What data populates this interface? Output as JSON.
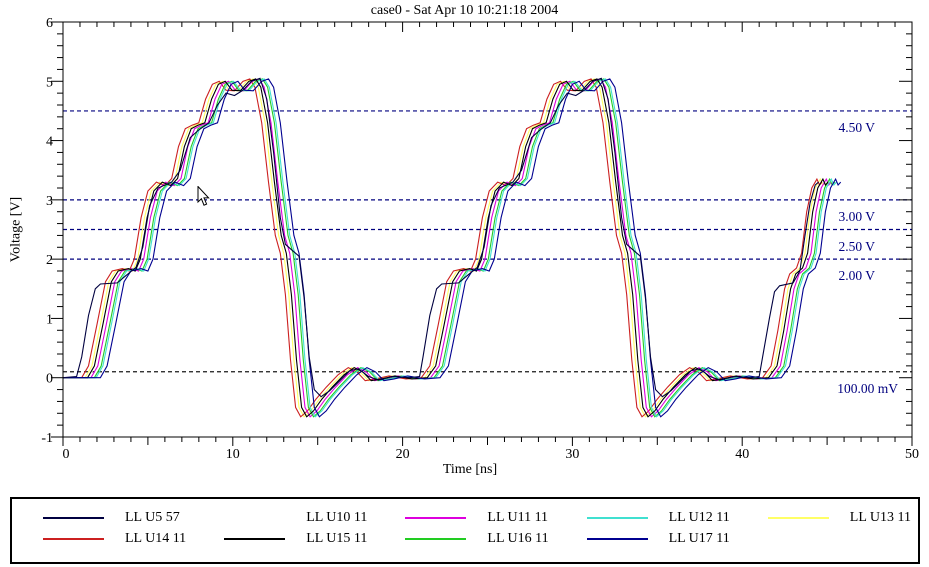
{
  "window": {
    "background": "#ffffff"
  },
  "chart_data": {
    "type": "line",
    "title": "case0 - Sat Apr 10 10:21:18 2004",
    "xlabel": "Time [ns]",
    "ylabel": "Voltage [V]",
    "xlim": [
      0,
      50
    ],
    "ylim": [
      -1,
      6
    ],
    "x_ticks": [
      0,
      10,
      20,
      30,
      40,
      50
    ],
    "y_ticks": [
      -1,
      0,
      1,
      2,
      3,
      4,
      5,
      6
    ],
    "x_minor_step_ns": 1,
    "y_minor_step_v": 0.2,
    "grid": false,
    "legend_position": "bottom",
    "frame_color": "#000000",
    "thresholds": [
      {
        "label": "4.50 V",
        "value": 4.5,
        "color": "#00007f"
      },
      {
        "label": "3.00 V",
        "value": 3.0,
        "color": "#00007f"
      },
      {
        "label": "2.50 V",
        "value": 2.5,
        "color": "#00007f"
      },
      {
        "label": "2.00 V",
        "value": 2.0,
        "color": "#00007f"
      },
      {
        "label": "100.00 mV",
        "value": 0.1,
        "color": "#1a1a1a"
      }
    ],
    "waveforms": {
      "base": [
        [
          0,
          0
        ],
        [
          0.9,
          0
        ],
        [
          1.3,
          0.2
        ],
        [
          1.8,
          0.9
        ],
        [
          2.3,
          1.62
        ],
        [
          2.7,
          1.8
        ],
        [
          3.3,
          1.84
        ],
        [
          3.7,
          1.8
        ],
        [
          4.0,
          2.0
        ],
        [
          4.4,
          2.7
        ],
        [
          4.8,
          3.15
        ],
        [
          5.3,
          3.3
        ],
        [
          5.8,
          3.24
        ],
        [
          6.2,
          3.36
        ],
        [
          6.6,
          3.9
        ],
        [
          7.0,
          4.2
        ],
        [
          7.4,
          4.26
        ],
        [
          7.8,
          4.3
        ],
        [
          8.2,
          4.7
        ],
        [
          8.6,
          4.95
        ],
        [
          9.0,
          5.0
        ],
        [
          9.4,
          4.85
        ],
        [
          9.9,
          4.84
        ],
        [
          10.4,
          5.0
        ],
        [
          10.8,
          5.04
        ],
        [
          11.1,
          4.9
        ],
        [
          11.5,
          4.3
        ],
        [
          11.9,
          3.3
        ],
        [
          12.3,
          2.4
        ],
        [
          12.6,
          2.1
        ],
        [
          12.9,
          1.4
        ],
        [
          13.2,
          0.3
        ],
        [
          13.5,
          -0.5
        ],
        [
          13.8,
          -0.66
        ],
        [
          14.2,
          -0.56
        ],
        [
          14.7,
          -0.36
        ],
        [
          15.3,
          -0.16
        ],
        [
          16.0,
          0.05
        ],
        [
          16.6,
          0.17
        ],
        [
          17.1,
          0.1
        ],
        [
          17.6,
          -0.05
        ],
        [
          18.2,
          -0.02
        ],
        [
          19.0,
          0.03
        ],
        [
          20.0,
          -0.02
        ],
        [
          20.9,
          0
        ],
        [
          21.4,
          0.2
        ],
        [
          21.9,
          0.9
        ],
        [
          22.4,
          1.62
        ],
        [
          22.8,
          1.8
        ],
        [
          23.4,
          1.84
        ],
        [
          23.8,
          1.8
        ],
        [
          24.1,
          2.0
        ],
        [
          24.5,
          2.7
        ],
        [
          24.9,
          3.15
        ],
        [
          25.4,
          3.3
        ],
        [
          25.9,
          3.24
        ],
        [
          26.3,
          3.36
        ],
        [
          26.7,
          3.9
        ],
        [
          27.1,
          4.2
        ],
        [
          27.5,
          4.26
        ],
        [
          27.9,
          4.3
        ],
        [
          28.3,
          4.7
        ],
        [
          28.7,
          4.95
        ],
        [
          29.1,
          5.0
        ],
        [
          29.5,
          4.85
        ],
        [
          30.0,
          4.84
        ],
        [
          30.5,
          5.0
        ],
        [
          30.9,
          5.04
        ],
        [
          31.2,
          4.9
        ],
        [
          31.6,
          4.3
        ],
        [
          32.0,
          3.3
        ],
        [
          32.4,
          2.4
        ],
        [
          32.7,
          2.1
        ],
        [
          33.0,
          1.4
        ],
        [
          33.3,
          0.3
        ],
        [
          33.6,
          -0.5
        ],
        [
          33.9,
          -0.66
        ],
        [
          34.3,
          -0.56
        ],
        [
          34.8,
          -0.36
        ],
        [
          35.4,
          -0.16
        ],
        [
          36.1,
          0.05
        ],
        [
          36.7,
          0.17
        ],
        [
          37.2,
          0.1
        ],
        [
          37.7,
          -0.05
        ],
        [
          38.3,
          -0.02
        ],
        [
          39.1,
          0.03
        ],
        [
          40.1,
          -0.02
        ],
        [
          41.0,
          0
        ],
        [
          41.5,
          0.2
        ],
        [
          41.9,
          0.8
        ],
        [
          42.3,
          1.5
        ],
        [
          42.6,
          1.75
        ],
        [
          43.0,
          1.85
        ],
        [
          43.3,
          2.1
        ],
        [
          43.6,
          2.8
        ],
        [
          43.9,
          3.2
        ],
        [
          44.2,
          3.35
        ],
        [
          44.35,
          3.25
        ],
        [
          44.5,
          3.3
        ]
      ],
      "u5": [
        [
          0,
          0
        ],
        [
          0.8,
          0.02
        ],
        [
          1.1,
          0.35
        ],
        [
          1.5,
          1.05
        ],
        [
          1.9,
          1.5
        ],
        [
          2.2,
          1.58
        ],
        [
          3.2,
          1.6
        ],
        [
          3.7,
          1.72
        ],
        [
          4.3,
          1.86
        ],
        [
          4.7,
          2.2
        ],
        [
          5.1,
          2.9
        ],
        [
          5.6,
          3.2
        ],
        [
          6.4,
          3.3
        ],
        [
          6.9,
          3.5
        ],
        [
          7.5,
          4.05
        ],
        [
          8.0,
          4.18
        ],
        [
          8.6,
          4.3
        ],
        [
          9.1,
          4.6
        ],
        [
          9.6,
          4.8
        ],
        [
          10.1,
          4.76
        ],
        [
          10.6,
          4.85
        ],
        [
          11.1,
          5.0
        ],
        [
          11.6,
          5.05
        ],
        [
          12.0,
          4.7
        ],
        [
          12.4,
          3.8
        ],
        [
          12.8,
          2.7
        ],
        [
          13.1,
          2.25
        ],
        [
          13.5,
          2.15
        ],
        [
          13.9,
          2.05
        ],
        [
          14.2,
          1.35
        ],
        [
          14.5,
          0.35
        ],
        [
          14.8,
          -0.2
        ],
        [
          15.2,
          -0.32
        ],
        [
          15.7,
          -0.22
        ],
        [
          16.3,
          -0.05
        ],
        [
          16.9,
          0.12
        ],
        [
          17.4,
          0.15
        ],
        [
          18.0,
          0.02
        ],
        [
          18.6,
          -0.04
        ],
        [
          19.4,
          0.02
        ],
        [
          20.4,
          0
        ],
        [
          21.0,
          0.02
        ],
        [
          21.2,
          0.35
        ],
        [
          21.6,
          1.05
        ],
        [
          22.0,
          1.5
        ],
        [
          22.3,
          1.58
        ],
        [
          23.3,
          1.6
        ],
        [
          23.8,
          1.72
        ],
        [
          24.4,
          1.86
        ],
        [
          24.8,
          2.2
        ],
        [
          25.2,
          2.9
        ],
        [
          25.7,
          3.2
        ],
        [
          26.5,
          3.3
        ],
        [
          27.0,
          3.5
        ],
        [
          27.6,
          4.05
        ],
        [
          28.1,
          4.18
        ],
        [
          28.7,
          4.3
        ],
        [
          29.2,
          4.6
        ],
        [
          29.7,
          4.8
        ],
        [
          30.2,
          4.76
        ],
        [
          30.7,
          4.85
        ],
        [
          31.2,
          5.0
        ],
        [
          31.7,
          5.05
        ],
        [
          32.1,
          4.7
        ],
        [
          32.5,
          3.8
        ],
        [
          32.9,
          2.7
        ],
        [
          33.2,
          2.25
        ],
        [
          33.6,
          2.15
        ],
        [
          34.0,
          2.05
        ],
        [
          34.3,
          1.35
        ],
        [
          34.6,
          0.35
        ],
        [
          34.9,
          -0.2
        ],
        [
          35.3,
          -0.32
        ],
        [
          35.8,
          -0.22
        ],
        [
          36.4,
          -0.05
        ],
        [
          37.0,
          0.12
        ],
        [
          37.5,
          0.15
        ],
        [
          38.1,
          0.02
        ],
        [
          38.7,
          -0.04
        ],
        [
          39.5,
          0.02
        ],
        [
          40.5,
          0
        ],
        [
          41.0,
          0.02
        ],
        [
          41.2,
          0.35
        ],
        [
          41.6,
          1.0
        ],
        [
          41.9,
          1.45
        ],
        [
          42.2,
          1.55
        ],
        [
          43.0,
          1.6
        ],
        [
          43.4,
          1.8
        ],
        [
          43.7,
          2.4
        ],
        [
          44.0,
          2.95
        ],
        [
          44.3,
          3.25
        ],
        [
          44.5,
          3.3
        ]
      ]
    },
    "series": [
      {
        "name": "LL U5 57",
        "color": "#000040",
        "waveform": "u5",
        "time_offset_ns": 0
      },
      {
        "name": "LL U10 11",
        "color": "#ffffff",
        "waveform": "base",
        "time_offset_ns": 0.6
      },
      {
        "name": "LL U11 11",
        "color": "#dd00dd",
        "waveform": "base",
        "time_offset_ns": 0.75
      },
      {
        "name": "LL U12 11",
        "color": "#40e0d0",
        "waveform": "base",
        "time_offset_ns": 1.05
      },
      {
        "name": "LL U13 11",
        "color": "#ffff66",
        "waveform": "base",
        "time_offset_ns": 0.4
      },
      {
        "name": "LL U14 11",
        "color": "#cc2020",
        "waveform": "base",
        "time_offset_ns": 0.2
      },
      {
        "name": "LL U15 11",
        "color": "#000000",
        "waveform": "base",
        "time_offset_ns": 0.55
      },
      {
        "name": "LL U16 11",
        "color": "#22cc22",
        "waveform": "base",
        "time_offset_ns": 0.95
      },
      {
        "name": "LL U17 11",
        "color": "#000090",
        "waveform": "base",
        "time_offset_ns": 1.3
      }
    ],
    "draw_order": [
      1,
      4,
      5,
      2,
      7,
      3,
      6,
      8,
      0
    ]
  }
}
